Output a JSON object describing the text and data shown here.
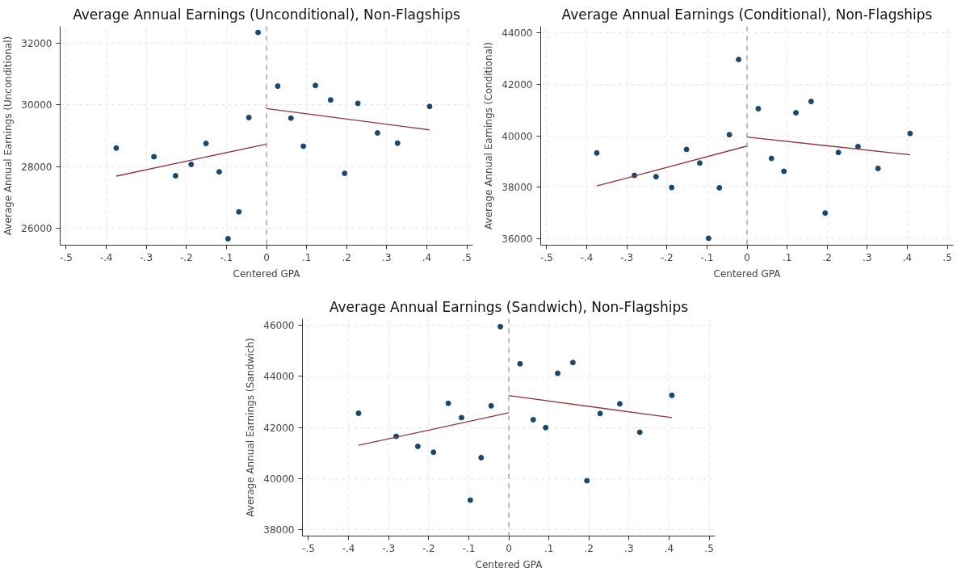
{
  "chart_data": [
    {
      "type": "scatter",
      "title": "Average Annual Earnings (Unconditional), Non-Flagships",
      "xlabel": "Centered GPA",
      "ylabel": "Average Annual Earnings (Unconditional)",
      "x": [
        -0.375,
        -0.281,
        -0.227,
        -0.188,
        -0.151,
        -0.118,
        -0.096,
        -0.069,
        -0.044,
        -0.021,
        0.028,
        0.061,
        0.092,
        0.122,
        0.16,
        0.195,
        0.228,
        0.277,
        0.327,
        0.407
      ],
      "series": [
        {
          "color": "#1a476f",
          "marker": "circle",
          "values": [
            28600,
            28320,
            27700,
            28070,
            28750,
            27830,
            25660,
            26530,
            29590,
            32350,
            30610,
            29570,
            28660,
            30630,
            30160,
            27780,
            30050,
            29090,
            28760,
            29950
          ]
        },
        {
          "type": "line",
          "color": "#90353b",
          "x": [
            -0.375,
            0
          ],
          "values": [
            27690,
            28730
          ]
        },
        {
          "type": "line",
          "color": "#90353b",
          "x": [
            0,
            0.407
          ],
          "values": [
            29880,
            29190
          ]
        }
      ],
      "xlim": [
        -0.515,
        0.515
      ],
      "ylim": [
        25450,
        32550
      ],
      "xticks": [
        {
          "value": -0.5,
          "label": "-.5"
        },
        {
          "value": -0.4,
          "label": "-.4"
        },
        {
          "value": -0.3,
          "label": "-.3"
        },
        {
          "value": -0.2,
          "label": "-.2"
        },
        {
          "value": -0.1,
          "label": "-.1"
        },
        {
          "value": 0,
          "label": "0"
        },
        {
          "value": 0.1,
          "label": ".1"
        },
        {
          "value": 0.2,
          "label": ".2"
        },
        {
          "value": 0.3,
          "label": ".3"
        },
        {
          "value": 0.4,
          "label": ".4"
        },
        {
          "value": 0.5,
          "label": ".5"
        }
      ],
      "yticks": [
        26000,
        28000,
        30000,
        32000
      ],
      "ref_lines": [
        {
          "axis": "x",
          "value": 0,
          "color": "#999999",
          "line_style": "dashed"
        }
      ],
      "grid": true
    },
    {
      "type": "scatter",
      "title": "Average Annual Earnings (Conditional), Non-Flagships",
      "xlabel": "Centered GPA",
      "ylabel": "Average Annual Earnings (Conditional)",
      "x": [
        -0.375,
        -0.281,
        -0.227,
        -0.188,
        -0.151,
        -0.118,
        -0.096,
        -0.069,
        -0.044,
        -0.021,
        0.028,
        0.061,
        0.092,
        0.122,
        0.16,
        0.195,
        0.228,
        0.277,
        0.327,
        0.407
      ],
      "series": [
        {
          "color": "#1a476f",
          "marker": "circle",
          "values": [
            39330,
            38460,
            38410,
            37990,
            39470,
            38940,
            36020,
            37980,
            40040,
            42960,
            41050,
            39120,
            38620,
            40890,
            41330,
            37000,
            39350,
            39580,
            38730,
            40090
          ]
        },
        {
          "type": "line",
          "color": "#90353b",
          "x": [
            -0.375,
            0
          ],
          "values": [
            38050,
            39600
          ]
        },
        {
          "type": "line",
          "color": "#90353b",
          "x": [
            0,
            0.407
          ],
          "values": [
            39950,
            39260
          ]
        }
      ],
      "xlim": [
        -0.515,
        0.515
      ],
      "ylim": [
        35750,
        44250
      ],
      "xticks": [
        {
          "value": -0.5,
          "label": "-.5"
        },
        {
          "value": -0.4,
          "label": "-.4"
        },
        {
          "value": -0.3,
          "label": "-.3"
        },
        {
          "value": -0.2,
          "label": "-.2"
        },
        {
          "value": -0.1,
          "label": "-.1"
        },
        {
          "value": 0,
          "label": "0"
        },
        {
          "value": 0.1,
          "label": ".1"
        },
        {
          "value": 0.2,
          "label": ".2"
        },
        {
          "value": 0.3,
          "label": ".3"
        },
        {
          "value": 0.4,
          "label": ".4"
        },
        {
          "value": 0.5,
          "label": ".5"
        }
      ],
      "yticks": [
        36000,
        38000,
        40000,
        42000,
        44000
      ],
      "ref_lines": [
        {
          "axis": "x",
          "value": 0,
          "color": "#999999",
          "line_style": "dashed"
        }
      ],
      "grid": true
    },
    {
      "type": "scatter",
      "title": "Average Annual Earnings (Sandwich), Non-Flagships",
      "xlabel": "Centered GPA",
      "ylabel": "Average Annual Earnings (Sandwich)",
      "x": [
        -0.375,
        -0.281,
        -0.227,
        -0.188,
        -0.151,
        -0.118,
        -0.096,
        -0.069,
        -0.044,
        -0.021,
        0.028,
        0.061,
        0.092,
        0.122,
        0.16,
        0.195,
        0.228,
        0.277,
        0.327,
        0.407
      ],
      "series": [
        {
          "color": "#1a476f",
          "marker": "circle",
          "values": [
            42550,
            41650,
            41260,
            41030,
            42940,
            42380,
            39160,
            40820,
            42840,
            45930,
            44480,
            42300,
            41990,
            44110,
            44530,
            39920,
            42540,
            42920,
            41810,
            43250
          ]
        },
        {
          "type": "line",
          "color": "#90353b",
          "x": [
            -0.375,
            0
          ],
          "values": [
            41300,
            42570
          ]
        },
        {
          "type": "line",
          "color": "#90353b",
          "x": [
            0,
            0.407
          ],
          "values": [
            43240,
            42380
          ]
        }
      ],
      "xlim": [
        -0.515,
        0.515
      ],
      "ylim": [
        37760,
        46240
      ],
      "xticks": [
        {
          "value": -0.5,
          "label": "-.5"
        },
        {
          "value": -0.4,
          "label": "-.4"
        },
        {
          "value": -0.3,
          "label": "-.3"
        },
        {
          "value": -0.2,
          "label": "-.2"
        },
        {
          "value": -0.1,
          "label": "-.1"
        },
        {
          "value": 0,
          "label": "0"
        },
        {
          "value": 0.1,
          "label": ".1"
        },
        {
          "value": 0.2,
          "label": ".2"
        },
        {
          "value": 0.3,
          "label": ".3"
        },
        {
          "value": 0.4,
          "label": ".4"
        },
        {
          "value": 0.5,
          "label": ".5"
        }
      ],
      "yticks": [
        38000,
        40000,
        42000,
        44000,
        46000
      ],
      "ref_lines": [
        {
          "axis": "x",
          "value": 0,
          "color": "#999999",
          "line_style": "dashed"
        }
      ],
      "grid": true
    }
  ]
}
